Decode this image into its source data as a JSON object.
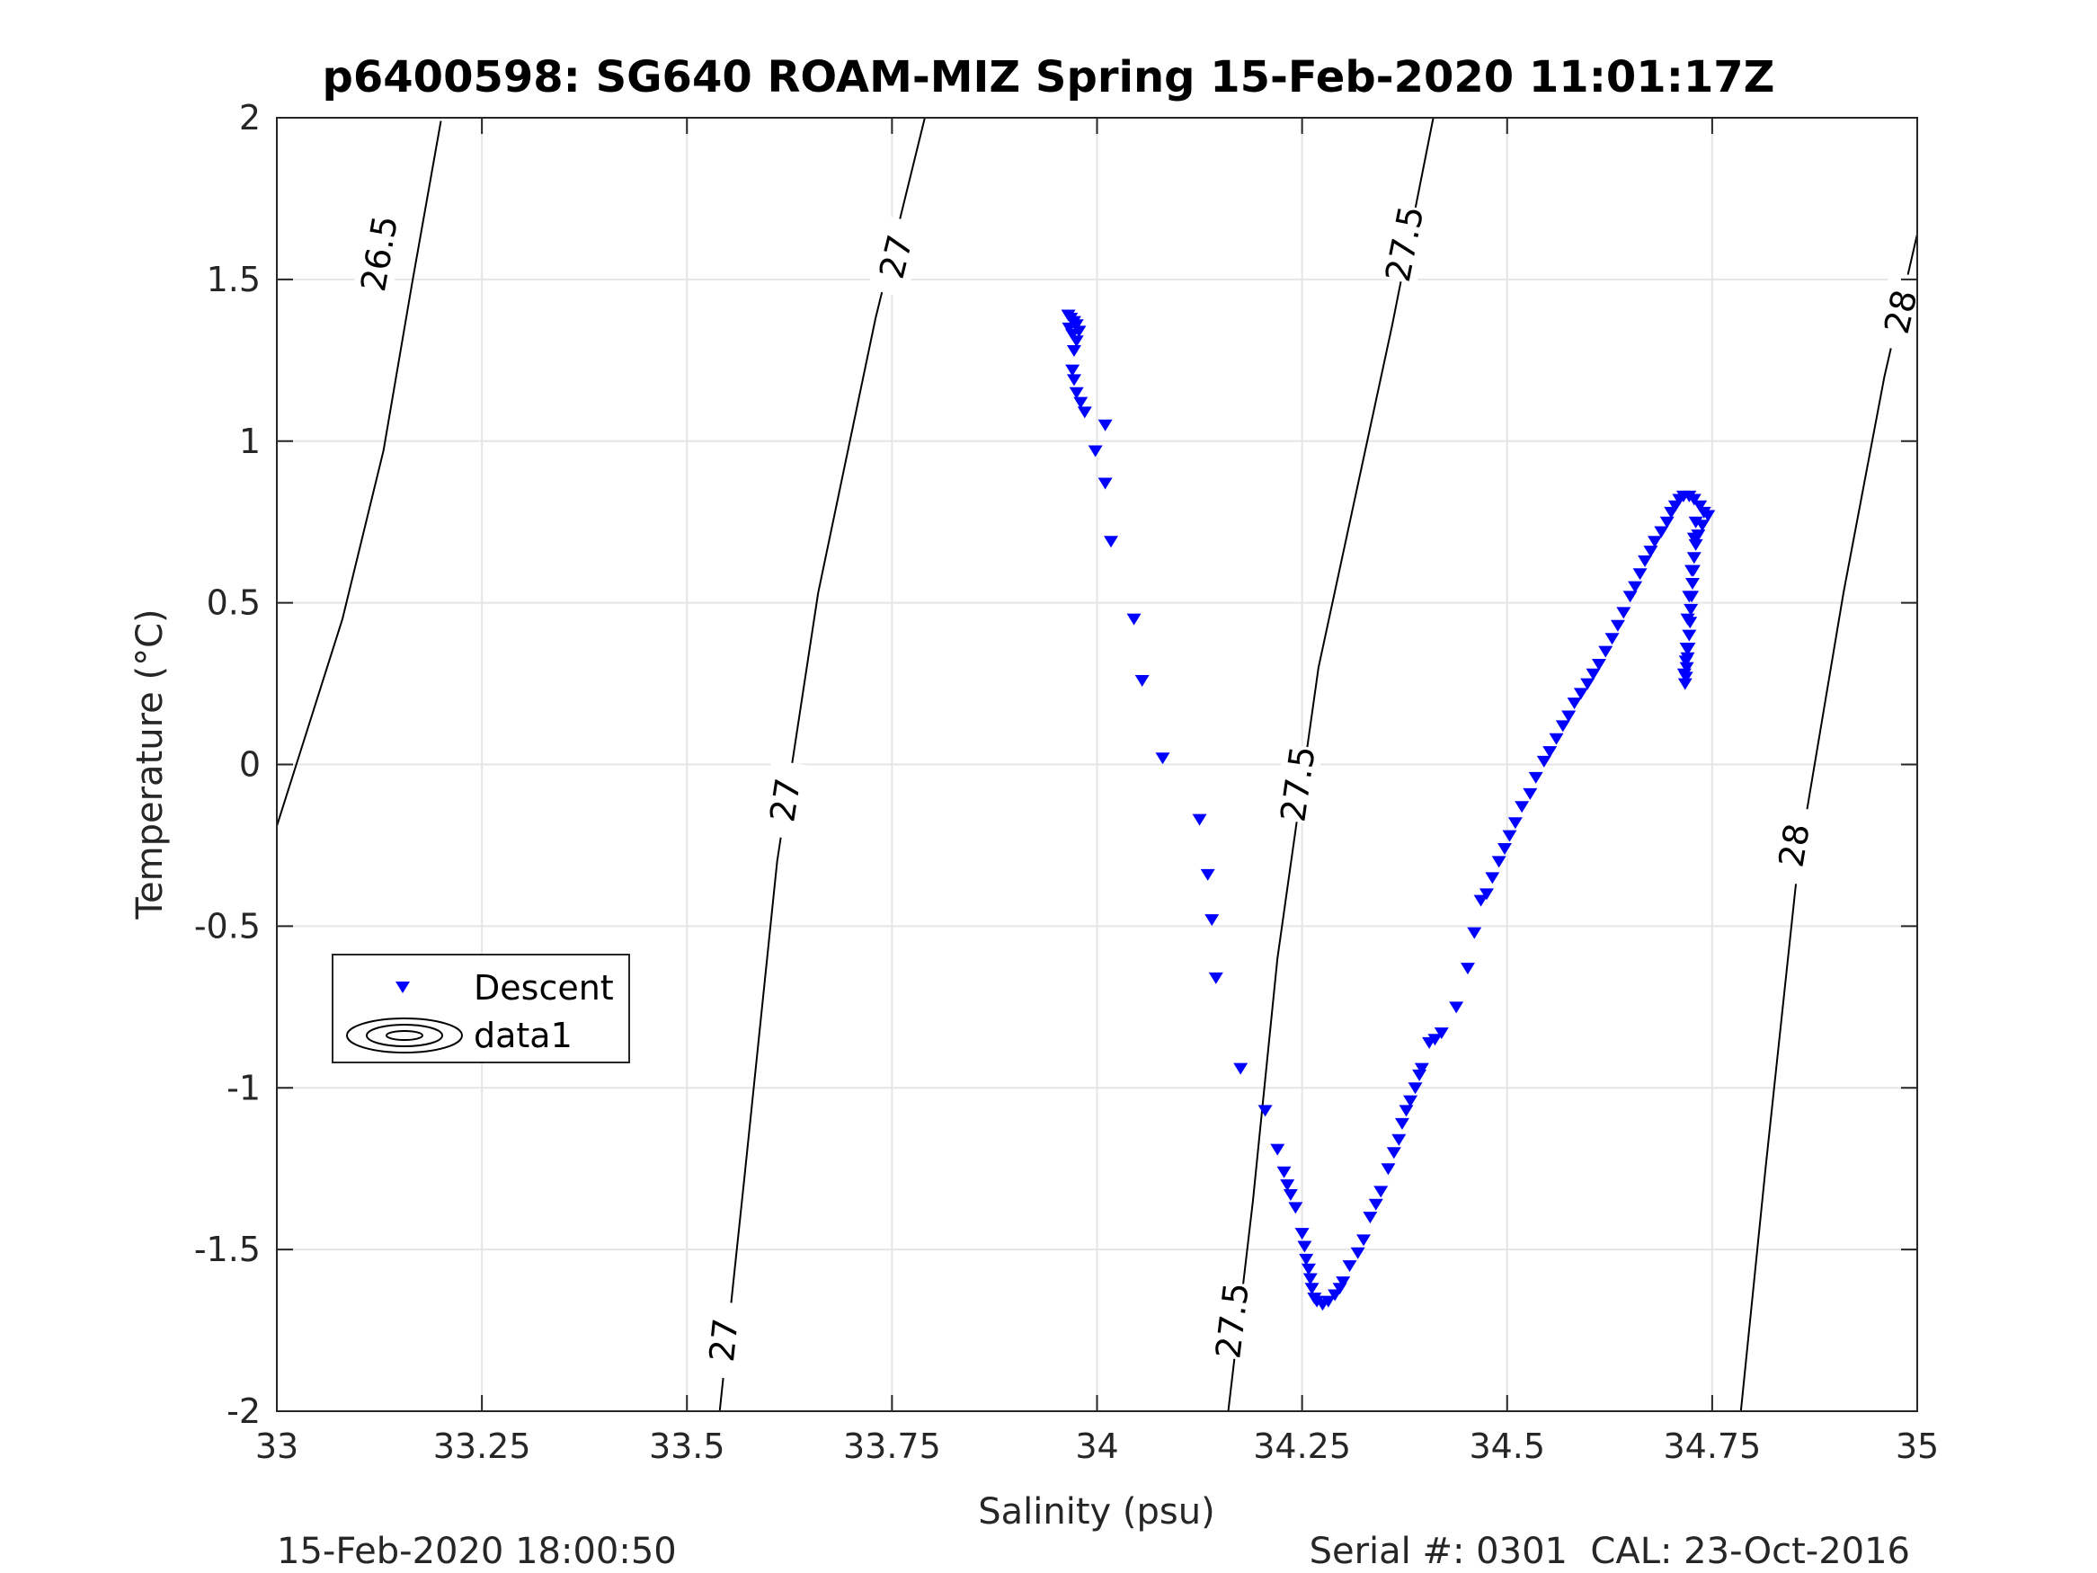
{
  "figure": {
    "title": "p6400598: SG640 ROAM-MIZ Spring 15-Feb-2020 11:01:17Z",
    "footer_left": "15-Feb-2020 18:00:50",
    "footer_right": "Serial #: 0301  CAL: 23-Oct-2016"
  },
  "chart_data": {
    "type": "scatter",
    "xlabel": "Salinity (psu)",
    "ylabel": "Temperature (°C)",
    "xlim": [
      33,
      35
    ],
    "ylim": [
      -2,
      2
    ],
    "xticks": [
      33,
      33.25,
      33.5,
      33.75,
      34,
      34.25,
      34.5,
      34.75,
      35
    ],
    "xtick_labels": [
      "33",
      "33.25",
      "33.5",
      "33.75",
      "34",
      "34.25",
      "34.5",
      "34.75",
      "35"
    ],
    "yticks": [
      -2,
      -1.5,
      -1,
      -0.5,
      0,
      0.5,
      1,
      1.5,
      2
    ],
    "ytick_labels": [
      "-2",
      "-1.5",
      "-1",
      "-0.5",
      "0",
      "0.5",
      "1",
      "1.5",
      "2"
    ],
    "grid": true,
    "legend": {
      "placement": "lower-left",
      "entries": [
        "Descent",
        "data1"
      ]
    },
    "colors": {
      "descent": "#0000ff",
      "contour": "#000000",
      "grid": "#e5e5e5",
      "axis": "#262626"
    },
    "series": [
      {
        "name": "Descent",
        "marker": "down-triangle",
        "points": [
          [
            33.965,
            1.39
          ],
          [
            33.968,
            1.38
          ],
          [
            33.972,
            1.37
          ],
          [
            33.975,
            1.36
          ],
          [
            33.966,
            1.35
          ],
          [
            33.978,
            1.34
          ],
          [
            33.97,
            1.33
          ],
          [
            33.975,
            1.31
          ],
          [
            33.972,
            1.28
          ],
          [
            33.97,
            1.22
          ],
          [
            33.972,
            1.19
          ],
          [
            33.975,
            1.15
          ],
          [
            33.98,
            1.12
          ],
          [
            33.985,
            1.09
          ],
          [
            33.998,
            0.97
          ],
          [
            34.01,
            1.05
          ],
          [
            34.01,
            0.87
          ],
          [
            34.017,
            0.69
          ],
          [
            34.045,
            0.45
          ],
          [
            34.055,
            0.26
          ],
          [
            34.08,
            0.02
          ],
          [
            34.125,
            -0.17
          ],
          [
            34.135,
            -0.34
          ],
          [
            34.14,
            -0.48
          ],
          [
            34.145,
            -0.66
          ],
          [
            34.175,
            -0.94
          ],
          [
            34.205,
            -1.07
          ],
          [
            34.22,
            -1.19
          ],
          [
            34.228,
            -1.26
          ],
          [
            34.232,
            -1.3
          ],
          [
            34.236,
            -1.33
          ],
          [
            34.242,
            -1.37
          ],
          [
            34.25,
            -1.45
          ],
          [
            34.253,
            -1.49
          ],
          [
            34.255,
            -1.53
          ],
          [
            34.258,
            -1.56
          ],
          [
            34.26,
            -1.59
          ],
          [
            34.262,
            -1.62
          ],
          [
            34.265,
            -1.65
          ],
          [
            34.268,
            -1.66
          ],
          [
            34.275,
            -1.67
          ],
          [
            34.282,
            -1.66
          ],
          [
            34.29,
            -1.64
          ],
          [
            34.296,
            -1.62
          ],
          [
            34.3,
            -1.6
          ],
          [
            34.308,
            -1.55
          ],
          [
            34.318,
            -1.51
          ],
          [
            34.325,
            -1.47
          ],
          [
            34.333,
            -1.4
          ],
          [
            34.34,
            -1.36
          ],
          [
            34.346,
            -1.32
          ],
          [
            34.355,
            -1.25
          ],
          [
            34.362,
            -1.2
          ],
          [
            34.368,
            -1.16
          ],
          [
            34.372,
            -1.11
          ],
          [
            34.377,
            -1.07
          ],
          [
            34.382,
            -1.04
          ],
          [
            34.388,
            -1.0
          ],
          [
            34.393,
            -0.96
          ],
          [
            34.396,
            -0.94
          ],
          [
            34.405,
            -0.86
          ],
          [
            34.412,
            -0.85
          ],
          [
            34.42,
            -0.83
          ],
          [
            34.438,
            -0.75
          ],
          [
            34.452,
            -0.63
          ],
          [
            34.46,
            -0.52
          ],
          [
            34.468,
            -0.42
          ],
          [
            34.475,
            -0.4
          ],
          [
            34.482,
            -0.35
          ],
          [
            34.49,
            -0.3
          ],
          [
            34.497,
            -0.26
          ],
          [
            34.503,
            -0.22
          ],
          [
            34.51,
            -0.18
          ],
          [
            34.518,
            -0.13
          ],
          [
            34.528,
            -0.09
          ],
          [
            34.535,
            -0.04
          ],
          [
            34.545,
            0.01
          ],
          [
            34.552,
            0.04
          ],
          [
            34.56,
            0.08
          ],
          [
            34.568,
            0.12
          ],
          [
            34.575,
            0.15
          ],
          [
            34.582,
            0.19
          ],
          [
            34.59,
            0.22
          ],
          [
            34.598,
            0.25
          ],
          [
            34.605,
            0.28
          ],
          [
            34.612,
            0.31
          ],
          [
            34.62,
            0.35
          ],
          [
            34.628,
            0.39
          ],
          [
            34.635,
            0.43
          ],
          [
            34.642,
            0.47
          ],
          [
            34.65,
            0.52
          ],
          [
            34.656,
            0.55
          ],
          [
            34.662,
            0.59
          ],
          [
            34.668,
            0.63
          ],
          [
            34.675,
            0.66
          ],
          [
            34.68,
            0.69
          ],
          [
            34.688,
            0.72
          ],
          [
            34.695,
            0.75
          ],
          [
            34.7,
            0.78
          ],
          [
            34.705,
            0.8
          ],
          [
            34.71,
            0.82
          ],
          [
            34.715,
            0.83
          ],
          [
            34.722,
            0.83
          ],
          [
            34.728,
            0.82
          ],
          [
            34.735,
            0.8
          ],
          [
            34.74,
            0.78
          ],
          [
            34.745,
            0.77
          ],
          [
            34.738,
            0.74
          ],
          [
            34.733,
            0.71
          ],
          [
            34.73,
            0.68
          ],
          [
            34.728,
            0.64
          ],
          [
            34.727,
            0.6
          ],
          [
            34.726,
            0.56
          ],
          [
            34.725,
            0.52
          ],
          [
            34.724,
            0.48
          ],
          [
            34.723,
            0.44
          ],
          [
            34.722,
            0.4
          ],
          [
            34.721,
            0.36
          ],
          [
            34.72,
            0.33
          ],
          [
            34.719,
            0.3
          ],
          [
            34.718,
            0.27
          ],
          [
            34.717,
            0.25
          ],
          [
            34.716,
            0.28
          ],
          [
            34.718,
            0.32
          ],
          [
            34.719,
            0.36
          ],
          [
            34.72,
            0.45
          ],
          [
            34.722,
            0.52
          ],
          [
            34.725,
            0.6
          ],
          [
            34.728,
            0.7
          ],
          [
            34.73,
            0.75
          ]
        ]
      }
    ],
    "isopycnals": [
      {
        "label": "26.5",
        "line": [
          [
            33.0,
            -0.19
          ],
          [
            33.03,
            0.05
          ],
          [
            33.08,
            0.45
          ],
          [
            33.13,
            0.97
          ],
          [
            33.165,
            1.49
          ],
          [
            33.2,
            1.99
          ]
        ],
        "labels_at": [
          [
            33.125,
            1.58
          ]
        ]
      },
      {
        "label": "27",
        "line": [
          [
            33.54,
            -2.0
          ],
          [
            33.57,
            -1.28
          ],
          [
            33.61,
            -0.3
          ],
          [
            33.66,
            0.53
          ],
          [
            33.73,
            1.38
          ],
          [
            33.79,
            2.0
          ]
        ],
        "labels_at": [
          [
            33.545,
            -1.78
          ],
          [
            33.62,
            -0.11
          ],
          [
            33.755,
            1.57
          ]
        ]
      },
      {
        "label": "27.5",
        "line": [
          [
            34.16,
            -2.0
          ],
          [
            34.19,
            -1.35
          ],
          [
            34.22,
            -0.6
          ],
          [
            34.27,
            0.3
          ],
          [
            34.36,
            1.36
          ],
          [
            34.41,
            2.0
          ]
        ],
        "labels_at": [
          [
            34.165,
            -1.72
          ],
          [
            34.245,
            -0.06
          ],
          [
            34.375,
            1.61
          ]
        ]
      },
      {
        "label": "28",
        "line": [
          [
            34.785,
            -2.0
          ],
          [
            34.815,
            -1.25
          ],
          [
            34.855,
            -0.3
          ],
          [
            34.91,
            0.53
          ],
          [
            34.96,
            1.2
          ],
          [
            35.0,
            1.64
          ]
        ],
        "labels_at": [
          [
            34.85,
            -0.25
          ],
          [
            34.98,
            1.4
          ]
        ]
      }
    ]
  }
}
